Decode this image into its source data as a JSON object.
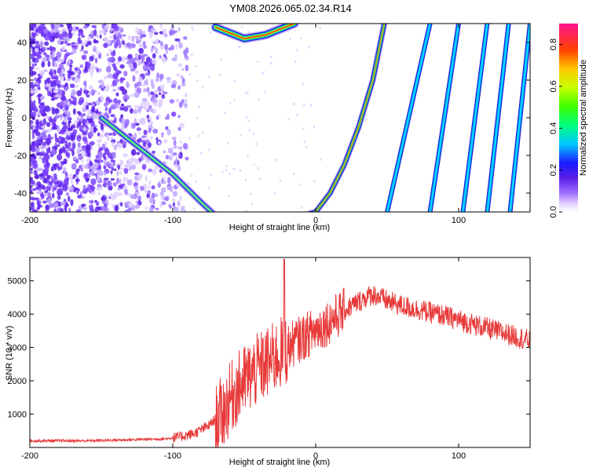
{
  "title": "YM08.2026.065.02.34.R14",
  "chart_data": [
    {
      "type": "heatmap",
      "name": "spectrogram",
      "xlabel": "Height of straight line (km)",
      "ylabel": "Frequency (Hz)",
      "xlim": [
        -200,
        150
      ],
      "ylim": [
        -50,
        50
      ],
      "xticks": [
        -200,
        -100,
        0,
        100
      ],
      "yticks": [
        -40,
        -20,
        0,
        20,
        40
      ],
      "colorbar": {
        "label": "Normalized spectral amplitude",
        "range": [
          0,
          0.9
        ],
        "ticks": [
          0,
          0.2,
          0.4,
          0.6,
          0.8
        ]
      },
      "features": {
        "descending_streak": {
          "x": [
            -150,
            -100,
            -80,
            -70
          ],
          "y": [
            0,
            -30,
            -45,
            -52
          ]
        },
        "upper_arc": {
          "x": [
            -70,
            -50,
            -35,
            -15
          ],
          "y": [
            48,
            42,
            44,
            50
          ]
        },
        "curved_band": {
          "x": [
            -10,
            0,
            10,
            20,
            30,
            40,
            48
          ],
          "y": [
            -52,
            -50,
            -40,
            -25,
            -5,
            20,
            50
          ]
        },
        "straight_bands": [
          {
            "x": [
              50,
              80
            ],
            "y": [
              -50,
              50
            ]
          },
          {
            "x": [
              80,
              100
            ],
            "y": [
              -50,
              50
            ]
          },
          {
            "x": [
              103,
              120
            ],
            "y": [
              -50,
              50
            ]
          },
          {
            "x": [
              120,
              135
            ],
            "y": [
              -50,
              50
            ]
          },
          {
            "x": [
              136,
              150
            ],
            "y": [
              -50,
              50
            ]
          }
        ],
        "noise_region_x": [
          -200,
          -90
        ]
      }
    },
    {
      "type": "line",
      "name": "snr",
      "xlabel": "Height of straight line (km)",
      "ylabel": "SNR (10 * v/v)",
      "xlim": [
        -200,
        150
      ],
      "ylim": [
        0,
        5700
      ],
      "xticks": [
        -200,
        -100,
        0,
        100
      ],
      "yticks": [
        1000,
        2000,
        3000,
        4000,
        5000
      ],
      "series": [
        {
          "name": "SNR",
          "color": "#e83a3a",
          "x": [
            -200,
            -160,
            -130,
            -105,
            -95,
            -85,
            -75,
            -65,
            -58,
            -50,
            -40,
            -30,
            -22,
            -15,
            -5,
            5,
            15,
            25,
            35,
            40,
            50,
            60,
            75,
            90,
            110,
            130,
            150
          ],
          "y": [
            200,
            200,
            230,
            260,
            320,
            420,
            650,
            1050,
            1600,
            2000,
            2350,
            2650,
            2900,
            3150,
            3400,
            3650,
            3950,
            4250,
            4500,
            4600,
            4400,
            4250,
            4100,
            3950,
            3700,
            3450,
            3200
          ]
        }
      ]
    }
  ]
}
